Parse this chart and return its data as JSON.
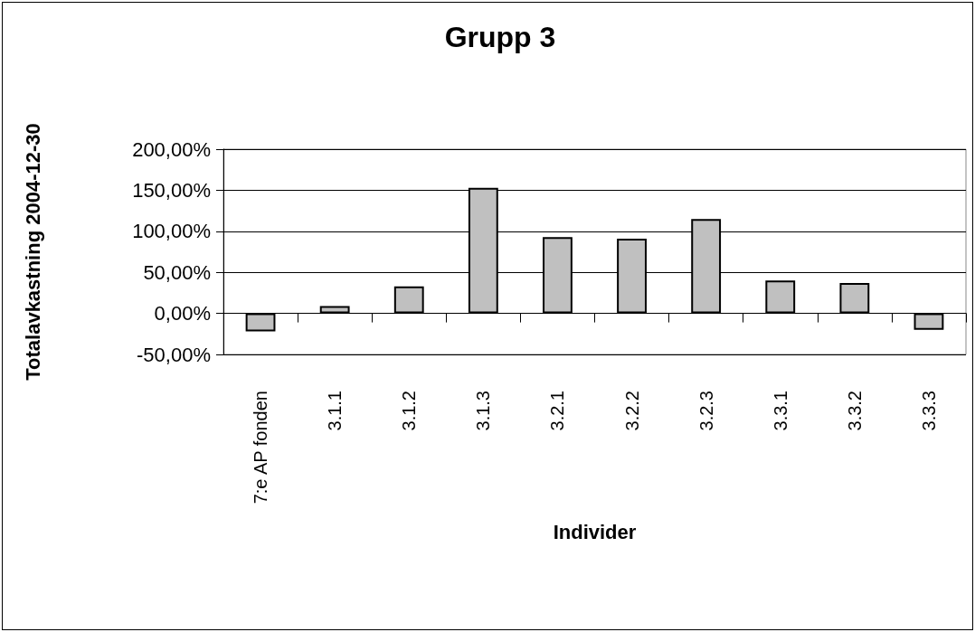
{
  "chart_data": {
    "type": "bar",
    "title": "Grupp 3",
    "xlabel": "Individer",
    "ylabel": "Totalavkastning 2004-12-30",
    "categories": [
      "7:e AP fonden",
      "3.1.1",
      "3.1.2",
      "3.1.3",
      "3.2.1",
      "3.2.2",
      "3.2.3",
      "3.3.1",
      "3.3.2",
      "3.3.3"
    ],
    "values": [
      -22,
      9,
      33,
      153,
      93,
      91,
      115,
      40,
      37,
      -20
    ],
    "color": "#c0c0c0",
    "ylim": [
      -50,
      200
    ],
    "yticks": [
      {
        "value": -50,
        "label": "-50,00%"
      },
      {
        "value": 0,
        "label": "0,00%"
      },
      {
        "value": 50,
        "label": "50,00%"
      },
      {
        "value": 100,
        "label": "100,00%"
      },
      {
        "value": 150,
        "label": "150,00%"
      },
      {
        "value": 200,
        "label": "200,00%"
      }
    ],
    "grid": "y"
  }
}
